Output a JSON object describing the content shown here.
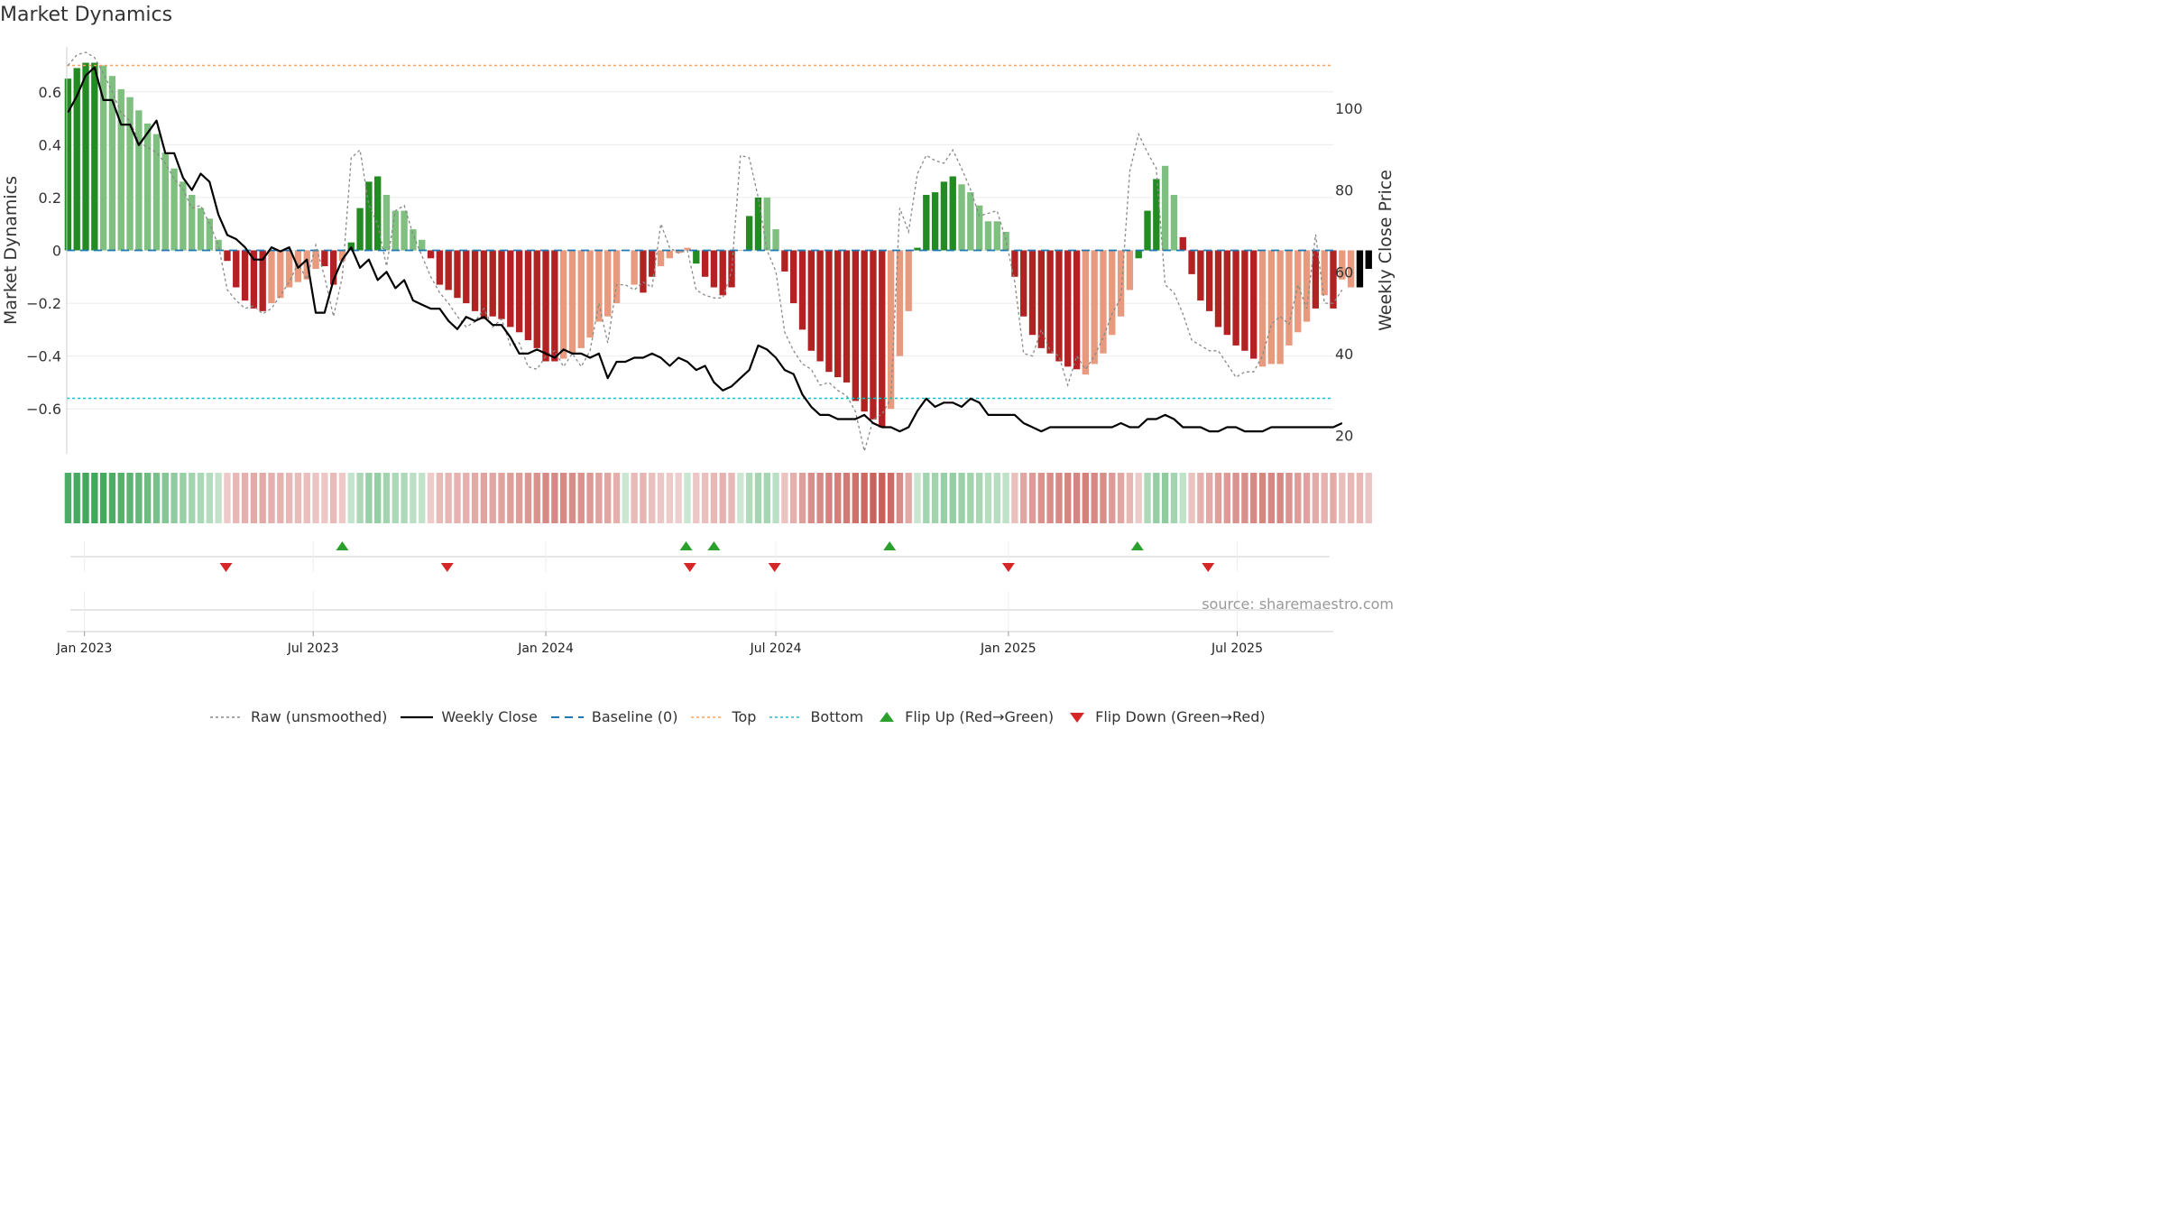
{
  "title": "Market Dynamics",
  "source_text": "source: sharemaestro.com",
  "colors": {
    "strong_green": "#228b22",
    "light_green": "#7fbf7f",
    "strong_red": "#b22222",
    "light_red": "#e89a7e",
    "close_line": "#000000",
    "raw_line": "#888888",
    "baseline": "#1f77b4",
    "top": "#f4a460",
    "bottom": "#17becf",
    "flip_up": "#2ca02c",
    "flip_down": "#d62728"
  },
  "legend": {
    "raw": "Raw (unsmoothed)",
    "close": "Weekly Close",
    "baseline": "Baseline (0)",
    "top": "Top",
    "bottom": "Bottom",
    "flip_up": "Flip Up (Red→Green)",
    "flip_down": "Flip Down (Green→Red)"
  },
  "chart_data": {
    "type": "bar",
    "title": "Market Dynamics",
    "ylabel_left": "Market Dynamics",
    "ylabel_right": "Weekly Close Price",
    "ylim_left": [
      -0.77,
      0.77
    ],
    "ylim_right": [
      15.5,
      115
    ],
    "yticks_left": [
      0.6,
      0.4,
      0.2,
      0,
      -0.2,
      -0.4,
      -0.6
    ],
    "yticks_left_labels": [
      "0.6",
      "0.4",
      "0.2",
      "0",
      "−0.2",
      "−0.4",
      "−0.6"
    ],
    "yticks_right": [
      100,
      80,
      60,
      40,
      20
    ],
    "yticks_right_labels": [
      "100",
      "80",
      "60",
      "40",
      "20"
    ],
    "x_range": [
      "2022-12-18",
      "2025-09-15"
    ],
    "x_ticks": [
      "2023-01-01",
      "2023-07-01",
      "2024-01-01",
      "2024-07-01",
      "2025-01-01",
      "2025-07-01"
    ],
    "x_tick_labels": [
      "Jan 2023",
      "Jul 2023",
      "Jan 2024",
      "Jul 2024",
      "Jan 2025",
      "Jul 2025"
    ],
    "top_level": 0.7,
    "bottom_level": -0.56,
    "baseline_level": 0,
    "series": [
      {
        "name": "Market Dynamics",
        "kind": "bar",
        "start_date": "2022-12-19",
        "step_days": 7,
        "values": [
          0.65,
          0.69,
          0.71,
          0.71,
          0.7,
          0.66,
          0.61,
          0.58,
          0.53,
          0.48,
          0.44,
          0.37,
          0.31,
          0.26,
          0.21,
          0.16,
          0.12,
          0.04,
          -0.04,
          -0.14,
          -0.19,
          -0.22,
          -0.23,
          -0.2,
          -0.18,
          -0.14,
          -0.12,
          -0.11,
          -0.07,
          -0.06,
          -0.13,
          -0.04,
          0.03,
          0.16,
          0.26,
          0.28,
          0.21,
          0.15,
          0.15,
          0.08,
          0.04,
          -0.03,
          -0.13,
          -0.15,
          -0.18,
          -0.2,
          -0.23,
          -0.26,
          -0.25,
          -0.26,
          -0.29,
          -0.31,
          -0.34,
          -0.37,
          -0.42,
          -0.42,
          -0.41,
          -0.39,
          -0.37,
          -0.33,
          -0.27,
          -0.25,
          -0.2,
          0.0,
          -0.13,
          -0.16,
          -0.1,
          -0.06,
          -0.03,
          -0.01,
          0.01,
          -0.05,
          -0.1,
          -0.14,
          -0.17,
          -0.14,
          0.0,
          0.13,
          0.2,
          0.2,
          0.08,
          -0.08,
          -0.2,
          -0.3,
          -0.38,
          -0.42,
          -0.46,
          -0.48,
          -0.5,
          -0.57,
          -0.61,
          -0.64,
          -0.67,
          -0.6,
          -0.4,
          -0.23,
          0.01,
          0.21,
          0.22,
          0.26,
          0.28,
          0.25,
          0.22,
          0.17,
          0.11,
          0.11,
          0.07,
          -0.1,
          -0.25,
          -0.32,
          -0.37,
          -0.39,
          -0.42,
          -0.44,
          -0.45,
          -0.47,
          -0.43,
          -0.39,
          -0.32,
          -0.25,
          -0.15,
          -0.03,
          0.15,
          0.27,
          0.32,
          0.21,
          0.05,
          -0.09,
          -0.19,
          -0.23,
          -0.29,
          -0.32,
          -0.36,
          -0.38,
          -0.41,
          -0.44,
          -0.43,
          -0.43,
          -0.36,
          -0.31,
          -0.27,
          -0.22,
          -0.17,
          -0.22,
          -0.11,
          -0.14,
          -0.14,
          -0.07
        ],
        "colors": [
          "G",
          "G",
          "G",
          "G",
          "g",
          "g",
          "g",
          "g",
          "g",
          "g",
          "g",
          "g",
          "g",
          "g",
          "g",
          "g",
          "g",
          "g",
          "R",
          "R",
          "R",
          "R",
          "R",
          "r",
          "r",
          "r",
          "r",
          "r",
          "r",
          "R",
          "R",
          "r",
          "G",
          "G",
          "G",
          "G",
          "g",
          "g",
          "g",
          "g",
          "g",
          "R",
          "R",
          "R",
          "R",
          "R",
          "R",
          "R",
          "R",
          "R",
          "R",
          "R",
          "R",
          "R",
          "R",
          "R",
          "r",
          "r",
          "r",
          "r",
          "r",
          "r",
          "r",
          "r",
          "r",
          "R",
          "R",
          "r",
          "r",
          "r",
          "r",
          "G",
          "R",
          "R",
          "R",
          "R",
          "r",
          "G",
          "G",
          "g",
          "g",
          "R",
          "R",
          "R",
          "R",
          "R",
          "R",
          "R",
          "R",
          "R",
          "R",
          "R",
          "R",
          "r",
          "r",
          "r",
          "G",
          "G",
          "G",
          "G",
          "G",
          "g",
          "g",
          "g",
          "g",
          "g",
          "g",
          "R",
          "R",
          "R",
          "R",
          "R",
          "R",
          "R",
          "R",
          "r",
          "r",
          "r",
          "r",
          "r",
          "r",
          "G",
          "G",
          "G",
          "g",
          "g",
          "R",
          "R",
          "R",
          "R",
          "R",
          "R",
          "R",
          "R",
          "R",
          "r",
          "r",
          "r",
          "r",
          "r",
          "r",
          "R",
          "r",
          "R",
          "r",
          "r"
        ]
      },
      {
        "name": "Raw (unsmoothed)",
        "kind": "line",
        "start_date": "2022-12-19",
        "step_days": 7,
        "values": [
          0.7,
          0.74,
          0.75,
          0.73,
          0.67,
          0.6,
          0.52,
          0.49,
          0.41,
          0.39,
          0.37,
          0.33,
          0.27,
          0.23,
          0.16,
          0.17,
          0.1,
          0.02,
          -0.15,
          -0.19,
          -0.22,
          -0.21,
          -0.24,
          -0.22,
          -0.17,
          -0.12,
          -0.05,
          -0.11,
          0.02,
          -0.1,
          -0.25,
          -0.1,
          0.35,
          0.38,
          0.17,
          0.1,
          -0.06,
          0.15,
          0.17,
          0.06,
          -0.02,
          -0.1,
          -0.16,
          -0.2,
          -0.25,
          -0.29,
          -0.27,
          -0.22,
          -0.29,
          -0.26,
          -0.36,
          -0.35,
          -0.44,
          -0.45,
          -0.4,
          -0.38,
          -0.44,
          -0.39,
          -0.44,
          -0.38,
          -0.2,
          -0.35,
          -0.13,
          -0.13,
          -0.15,
          -0.12,
          -0.14,
          0.1,
          0.01,
          -0.01,
          0.0,
          -0.15,
          -0.17,
          -0.18,
          -0.18,
          -0.08,
          0.36,
          0.35,
          0.2,
          0.0,
          -0.08,
          -0.31,
          -0.38,
          -0.43,
          -0.45,
          -0.51,
          -0.5,
          -0.53,
          -0.55,
          -0.61,
          -0.76,
          -0.64,
          -0.62,
          -0.56,
          0.16,
          0.07,
          0.29,
          0.36,
          0.34,
          0.33,
          0.38,
          0.31,
          0.23,
          0.13,
          0.14,
          0.15,
          0.04,
          -0.12,
          -0.39,
          -0.4,
          -0.3,
          -0.38,
          -0.4,
          -0.51,
          -0.4,
          -0.45,
          -0.4,
          -0.33,
          -0.24,
          -0.18,
          0.3,
          0.44,
          0.37,
          0.31,
          -0.13,
          -0.16,
          -0.24,
          -0.34,
          -0.36,
          -0.38,
          -0.38,
          -0.43,
          -0.48,
          -0.46,
          -0.46,
          -0.4,
          -0.28,
          -0.25,
          -0.28,
          -0.13,
          -0.22,
          0.06,
          -0.2,
          -0.2,
          -0.15
        ]
      },
      {
        "name": "Weekly Close",
        "kind": "line",
        "axis": "right",
        "start_date": "2022-12-19",
        "step_days": 7,
        "values": [
          99,
          103,
          108,
          110,
          102,
          102,
          96,
          96,
          91,
          94,
          97,
          89,
          89,
          83,
          80,
          84,
          82,
          74,
          69,
          68,
          66,
          63,
          63,
          66,
          65,
          66,
          61,
          63,
          50,
          50,
          58,
          63,
          66,
          61,
          63,
          58,
          60,
          56,
          58,
          53,
          52,
          51,
          51,
          48,
          46,
          49,
          48,
          49,
          47,
          47,
          44,
          40,
          40,
          41,
          40,
          39,
          41,
          40,
          40,
          39,
          40,
          34,
          38,
          38,
          39,
          39,
          40,
          39,
          37,
          39,
          38,
          36,
          37,
          33,
          31,
          32,
          34,
          36,
          42,
          41,
          39,
          36,
          35,
          30,
          27,
          25,
          25,
          24,
          24,
          24,
          25,
          23,
          22,
          22,
          21,
          22,
          26,
          29,
          27,
          28,
          28,
          27,
          29,
          28,
          25,
          25,
          25,
          25,
          23,
          22,
          21,
          22,
          22,
          22,
          22,
          22,
          22,
          22,
          22,
          23,
          22,
          22,
          24,
          24,
          25,
          24,
          22,
          22,
          22,
          21,
          21,
          22,
          22,
          21,
          21,
          21,
          22,
          22,
          22,
          22,
          22,
          22,
          22,
          22,
          23
        ]
      }
    ],
    "flip_up_dates": [
      "2023-07-24",
      "2024-04-21",
      "2024-05-13",
      "2024-09-29",
      "2025-04-13"
    ],
    "flip_down_dates": [
      "2023-04-23",
      "2023-10-15",
      "2024-04-24",
      "2024-06-30",
      "2025-01-01",
      "2025-06-08"
    ],
    "heat_strip": "strength band colored by series value (green positive, red negative)"
  }
}
